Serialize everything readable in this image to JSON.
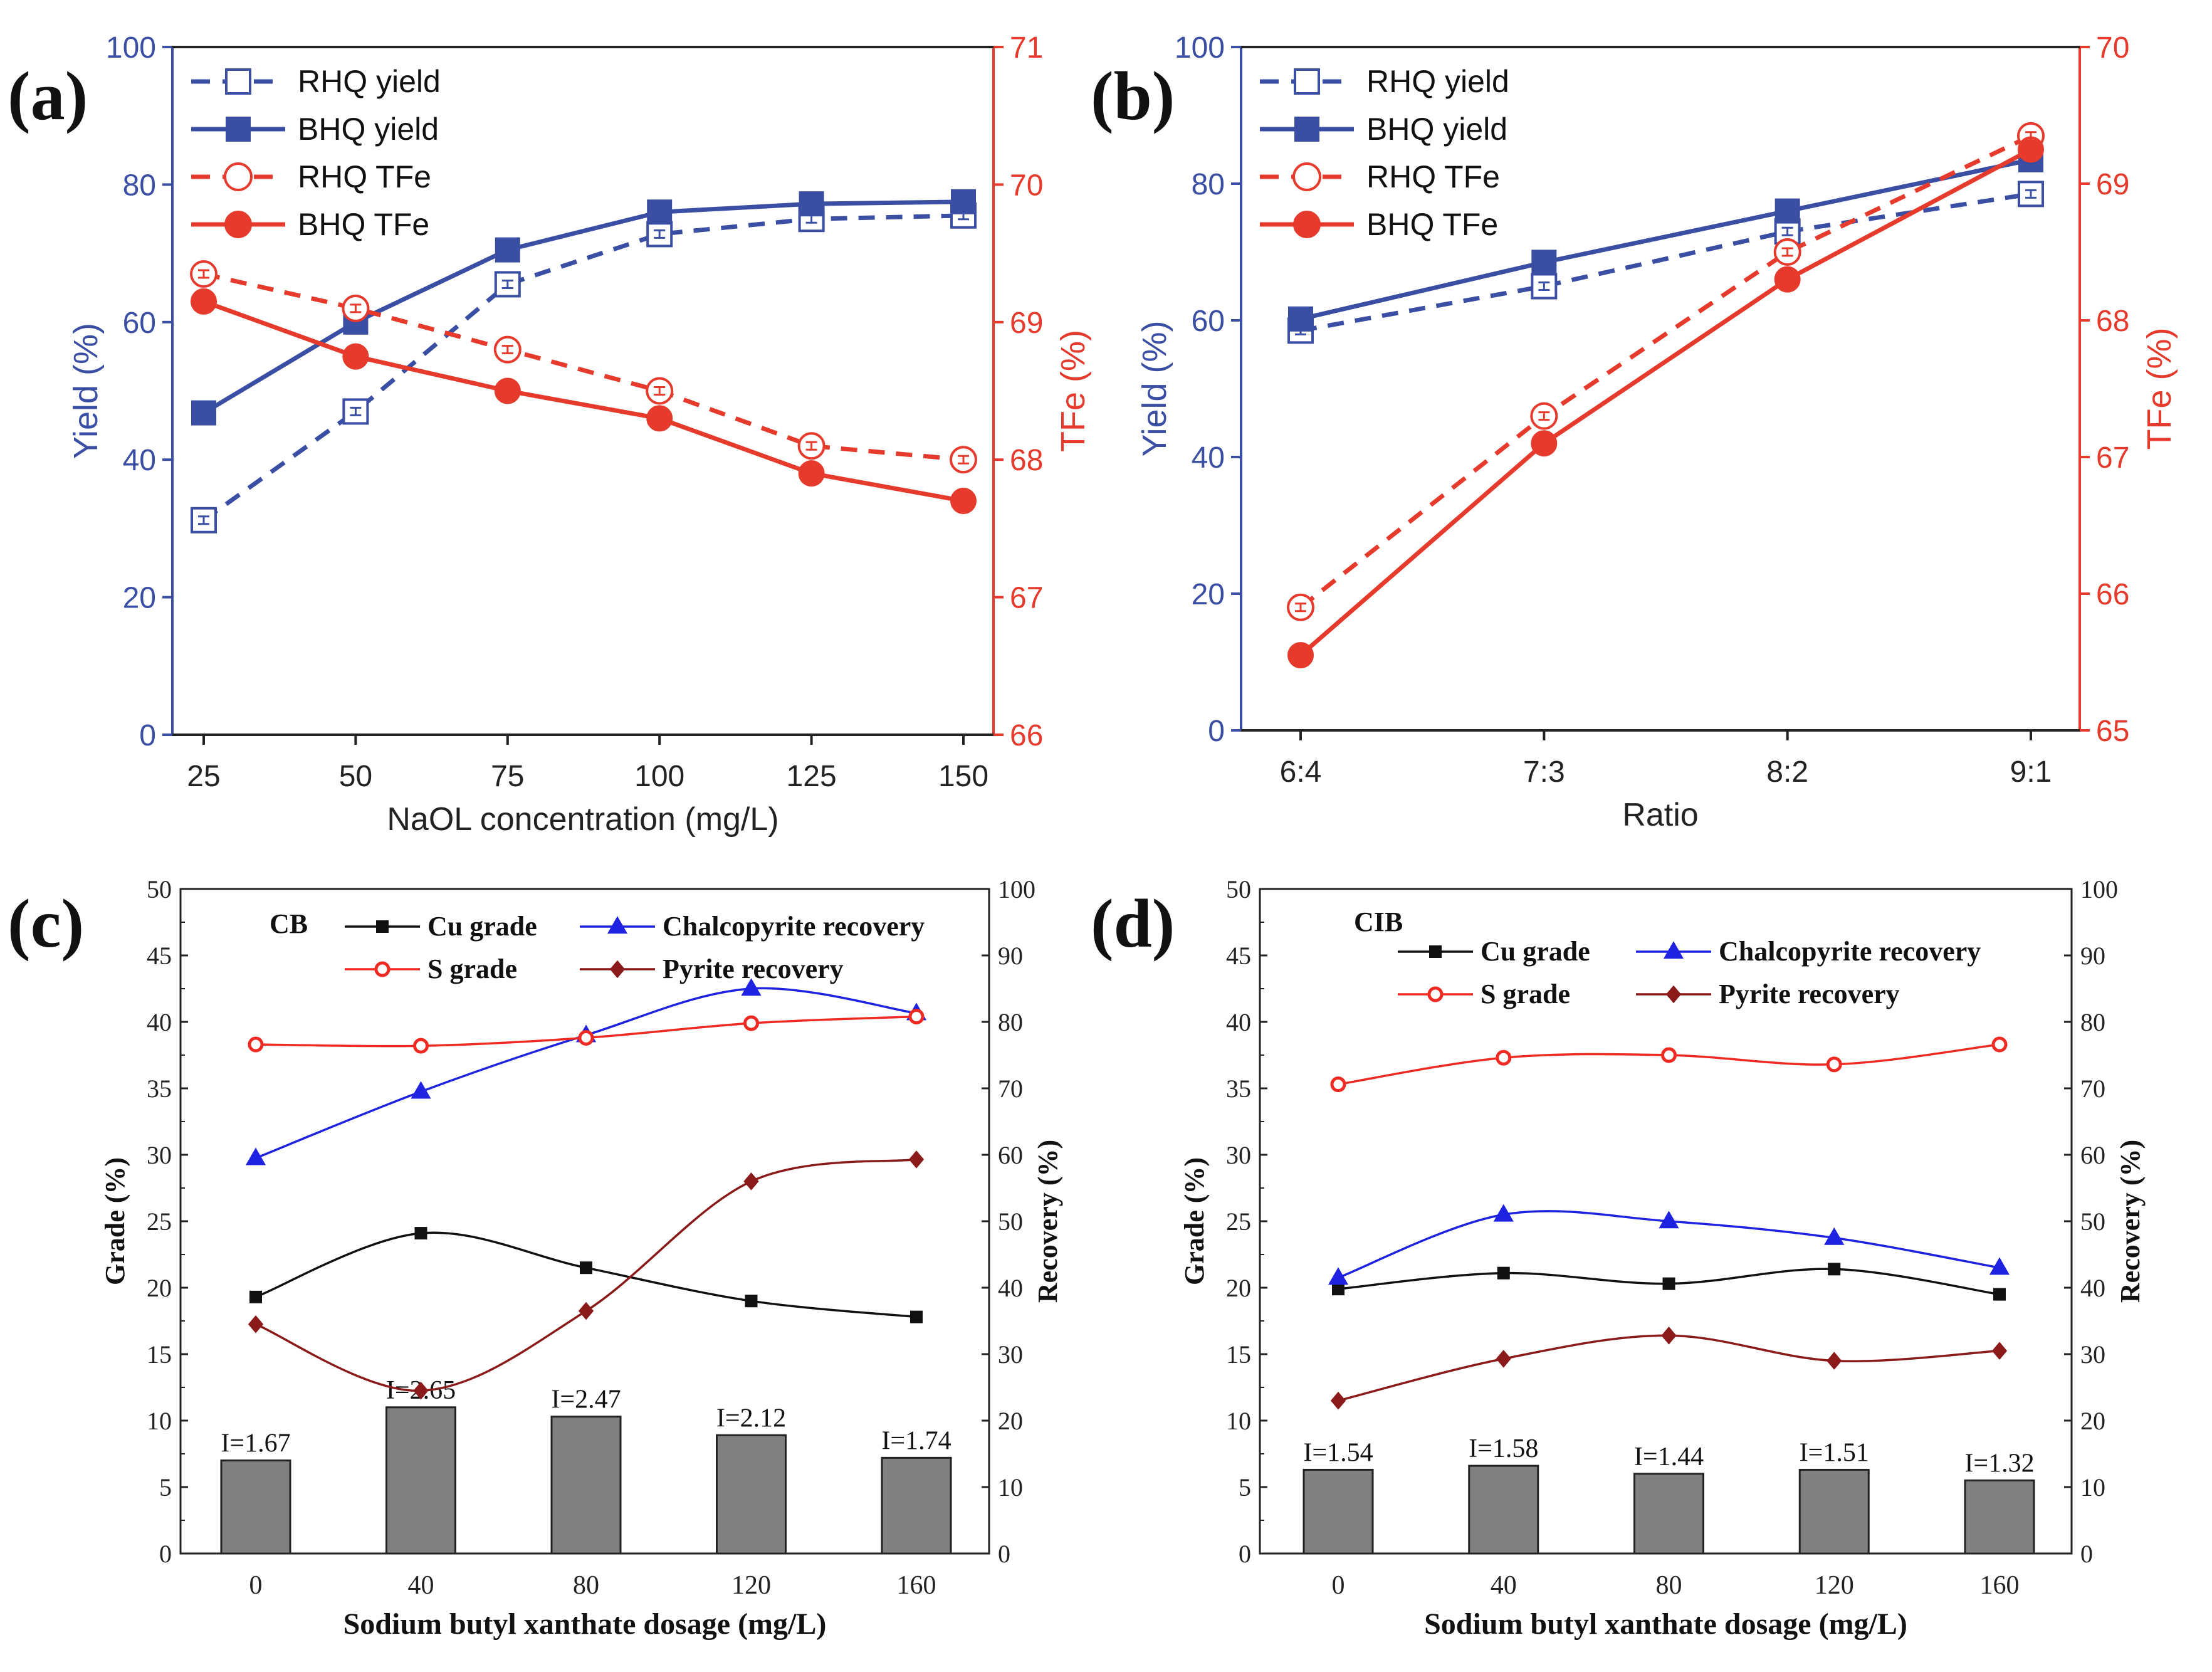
{
  "chart_data": [
    {
      "panel": "(a)",
      "type": "line",
      "x": [
        25,
        50,
        75,
        100,
        125,
        150
      ],
      "xticks": [
        "25",
        "50",
        "75",
        "100",
        "125",
        "150"
      ],
      "xlabel": "NaOL concentration (mg/L)",
      "ylabel": "Yield (%)",
      "y2label": "TFe (%)",
      "ylim": [
        0,
        100
      ],
      "y2lim": [
        66,
        71
      ],
      "yticks": [
        "0",
        "20",
        "40",
        "60",
        "80",
        "100"
      ],
      "y2ticks": [
        "66",
        "67",
        "68",
        "69",
        "70",
        "71"
      ],
      "legend": "top-left",
      "series": [
        {
          "name": "RHQ yield",
          "axis": "left",
          "values": [
            31.2,
            47.0,
            65.5,
            72.8,
            75.0,
            75.5
          ]
        },
        {
          "name": "BHQ yield",
          "axis": "left",
          "values": [
            46.8,
            60.0,
            70.5,
            76.0,
            77.2,
            77.5
          ]
        },
        {
          "name": "RHQ TFe",
          "axis": "right",
          "values": [
            69.35,
            69.1,
            68.8,
            68.5,
            68.1,
            68.0
          ]
        },
        {
          "name": "BHQ TFe",
          "axis": "right",
          "values": [
            69.15,
            68.75,
            68.5,
            68.3,
            67.9,
            67.7
          ]
        }
      ]
    },
    {
      "panel": "(b)",
      "type": "line",
      "categories": [
        "6:4",
        "7:3",
        "8:2",
        "9:1"
      ],
      "xlabel": "Ratio",
      "ylabel": "Yield (%)",
      "y2label": "TFe (%)",
      "ylim": [
        0,
        100
      ],
      "y2lim": [
        65,
        70
      ],
      "yticks": [
        "0",
        "20",
        "40",
        "60",
        "80",
        "100"
      ],
      "y2ticks": [
        "65",
        "66",
        "67",
        "68",
        "69",
        "70"
      ],
      "legend": "top-left",
      "series": [
        {
          "name": "RHQ yield",
          "axis": "left",
          "values": [
            58.5,
            65.0,
            73.0,
            78.5
          ]
        },
        {
          "name": "BHQ yield",
          "axis": "left",
          "values": [
            60.2,
            68.5,
            76.0,
            83.5
          ]
        },
        {
          "name": "RHQ TFe",
          "axis": "right",
          "values": [
            65.9,
            67.3,
            68.5,
            69.35
          ]
        },
        {
          "name": "BHQ TFe",
          "axis": "right",
          "values": [
            65.55,
            67.1,
            68.3,
            69.25
          ]
        }
      ]
    },
    {
      "panel": "(c)",
      "type": "bar+line",
      "tag": "CB",
      "x": [
        0,
        40,
        80,
        120,
        160
      ],
      "xticks": [
        "0",
        "40",
        "80",
        "120",
        "160"
      ],
      "xlabel": "Sodium butyl xanthate dosage (mg/L)",
      "ylabel": "Grade (%)",
      "y2label": "Recovery (%)",
      "ylim": [
        0,
        50
      ],
      "y2lim": [
        0,
        100
      ],
      "yticks": [
        "0",
        "5",
        "10",
        "15",
        "20",
        "25",
        "30",
        "35",
        "40",
        "45",
        "50"
      ],
      "y2ticks": [
        "0",
        "10",
        "20",
        "30",
        "40",
        "50",
        "60",
        "70",
        "80",
        "90",
        "100"
      ],
      "bars": {
        "axis": "left",
        "values": [
          7.0,
          11.0,
          10.3,
          8.9,
          7.2
        ],
        "labels": [
          "I=1.67",
          "I=2.65",
          "I=2.47",
          "I=2.12",
          "I=1.74"
        ]
      },
      "series": [
        {
          "name": "Cu grade",
          "axis": "left",
          "values": [
            19.3,
            24.1,
            21.5,
            19.0,
            17.8
          ]
        },
        {
          "name": "Chalcopyrite recovery",
          "axis": "right",
          "values": [
            59.5,
            69.5,
            78.0,
            85.0,
            81.3
          ]
        },
        {
          "name": "S grade",
          "axis": "left",
          "values": [
            38.3,
            38.2,
            38.8,
            39.9,
            40.4
          ]
        },
        {
          "name": "Pyrite recovery",
          "axis": "right",
          "values": [
            34.5,
            24.5,
            36.5,
            56.0,
            59.3
          ]
        }
      ]
    },
    {
      "panel": "(d)",
      "type": "bar+line",
      "tag": "CIB",
      "x": [
        0,
        40,
        80,
        120,
        160
      ],
      "xticks": [
        "0",
        "40",
        "80",
        "120",
        "160"
      ],
      "xlabel": "Sodium butyl xanthate dosage (mg/L)",
      "ylabel": "Grade (%)",
      "y2label": "Recovery (%)",
      "ylim": [
        0,
        50
      ],
      "y2lim": [
        0,
        100
      ],
      "yticks": [
        "0",
        "5",
        "10",
        "15",
        "20",
        "25",
        "30",
        "35",
        "40",
        "45",
        "50"
      ],
      "y2ticks": [
        "0",
        "10",
        "20",
        "30",
        "40",
        "50",
        "60",
        "70",
        "80",
        "90",
        "100"
      ],
      "bars": {
        "axis": "left",
        "values": [
          6.3,
          6.6,
          6.0,
          6.3,
          5.5
        ],
        "labels": [
          "I=1.54",
          "I=1.58",
          "I=1.44",
          "I=1.51",
          "I=1.32"
        ]
      },
      "series": [
        {
          "name": "Cu grade",
          "axis": "left",
          "values": [
            19.9,
            21.1,
            20.3,
            21.4,
            19.5
          ]
        },
        {
          "name": "Chalcopyrite recovery",
          "axis": "right",
          "values": [
            41.5,
            51.0,
            50.0,
            47.5,
            43.0
          ]
        },
        {
          "name": "S grade",
          "axis": "left",
          "values": [
            35.3,
            37.3,
            37.5,
            36.8,
            38.3
          ]
        },
        {
          "name": "Pyrite recovery",
          "axis": "right",
          "values": [
            23.0,
            29.3,
            32.8,
            29.0,
            30.5
          ]
        }
      ]
    }
  ],
  "colors": {
    "blue": "#3a4ea3",
    "red": "#e53a2c",
    "black": "#111111",
    "tri_blue": "#1f22e0",
    "sgrade_red": "#ef2a22",
    "pyrite": "#8b1a1a",
    "bar": "#808080"
  }
}
